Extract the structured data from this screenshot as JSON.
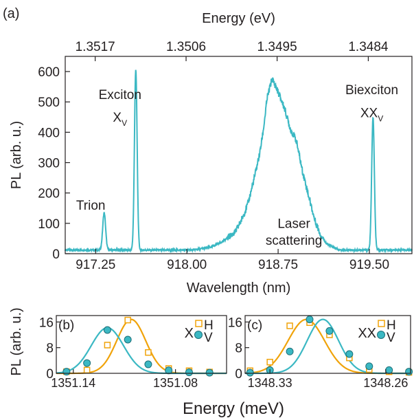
{
  "figure": {
    "xlabel_shared": "Energy (meV)"
  },
  "chart_data": [
    {
      "panel": "(a)",
      "type": "line",
      "xlabel": "Wavelength (nm)",
      "ylabel": "PL  (arb. u.)",
      "top_axis_label": "Energy (eV)",
      "xlim": [
        917.0,
        919.85
      ],
      "ylim": [
        0,
        650
      ],
      "xticks": [
        917.25,
        918.0,
        918.75,
        919.5
      ],
      "xtick_labels": [
        "917.25",
        "918.00",
        "918.75",
        "919.50"
      ],
      "yticks": [
        0,
        100,
        200,
        300,
        400,
        500,
        600
      ],
      "ytick_labels": [
        "0",
        "100",
        "200",
        "300",
        "400",
        "500",
        "600"
      ],
      "top_ticks": [
        1.3517,
        1.3506,
        1.3495,
        1.3484
      ],
      "top_tick_labels": [
        "1.3517",
        "1.3506",
        "1.3495",
        "1.3484"
      ],
      "color": "#3bb8c3",
      "baseline": 12,
      "peaks": [
        {
          "center": 917.32,
          "width": 0.012,
          "height": 123
        },
        {
          "center": 917.58,
          "width": 0.011,
          "height": 595
        },
        {
          "center": 919.53,
          "width": 0.011,
          "height": 437
        }
      ],
      "broad_band": {
        "x": [
          918.05,
          918.2,
          918.3,
          918.4,
          918.45,
          918.5,
          918.55,
          918.6,
          918.63,
          918.66,
          918.7,
          918.74,
          918.8,
          918.85,
          918.9,
          918.95,
          919.0,
          919.05,
          919.1,
          919.15,
          919.25
        ],
        "y": [
          0,
          10,
          30,
          60,
          100,
          150,
          230,
          320,
          400,
          500,
          565,
          530,
          470,
          400,
          360,
          260,
          180,
          100,
          50,
          20,
          0
        ]
      },
      "annotations": [
        {
          "text": "Trion",
          "x": 917.21,
          "y": 145
        },
        {
          "text": "Exciton",
          "x": 917.45,
          "y": 510
        },
        {
          "text": "X",
          "sub": "V",
          "x": 917.45,
          "y": 435
        },
        {
          "text": "Laser",
          "x": 918.88,
          "y": 85
        },
        {
          "text": "scattering",
          "x": 918.88,
          "y": 30
        },
        {
          "text": "Biexciton",
          "x": 919.52,
          "y": 525
        },
        {
          "text": "XX",
          "sub": "V",
          "x": 919.52,
          "y": 450
        }
      ]
    },
    {
      "panel": "(b)",
      "type": "scatter",
      "ylabel": "PL (arb. u.)",
      "xlim": [
        1351.15,
        1351.05
      ],
      "ylim": [
        0,
        18
      ],
      "xticks": [
        1351.14,
        1351.08
      ],
      "xtick_labels": [
        "1351.14",
        "1351.08"
      ],
      "yticks": [
        0,
        8,
        16
      ],
      "ytick_labels": [
        "0",
        "8",
        "16"
      ],
      "legend_title": "X",
      "series": [
        {
          "name": "H",
          "marker": "square",
          "color": "#f0a30a",
          "x": [
            1351.144,
            1351.132,
            1351.12,
            1351.108,
            1351.096,
            1351.084,
            1351.072,
            1351.06
          ],
          "y": [
            0.5,
            1.0,
            8.8,
            16.6,
            6.5,
            1.5,
            0.8,
            0.4
          ],
          "fit_center": 1351.106,
          "fit_sigma": 0.0085,
          "fit_amp": 16.8
        },
        {
          "name": "V",
          "marker": "circle",
          "color": "#3bb8c3",
          "x": [
            1351.144,
            1351.132,
            1351.12,
            1351.108,
            1351.096,
            1351.084,
            1351.072,
            1351.06
          ],
          "y": [
            0.5,
            3.2,
            13.5,
            10.5,
            2.8,
            0.9,
            0.3,
            0.2
          ],
          "fit_center": 1351.12,
          "fit_sigma": 0.0095,
          "fit_amp": 14.2
        }
      ]
    },
    {
      "panel": "(c)",
      "type": "scatter",
      "xlim": [
        1348.345,
        1348.245
      ],
      "ylim": [
        0,
        18
      ],
      "xticks": [
        1348.33,
        1348.26
      ],
      "xtick_labels": [
        "1348.33",
        "1348.26"
      ],
      "yticks": [
        0,
        8,
        16
      ],
      "ytick_labels": [
        "0",
        "8",
        "16"
      ],
      "legend_title": "XX",
      "series": [
        {
          "name": "H",
          "marker": "square",
          "color": "#f0a30a",
          "x": [
            1348.342,
            1348.33,
            1348.318,
            1348.306,
            1348.294,
            1348.282,
            1348.27,
            1348.258,
            1348.246
          ],
          "y": [
            0.8,
            3.5,
            14.8,
            15.8,
            12.0,
            4.8,
            1.2,
            0.5,
            0.3
          ],
          "fit_center": 1348.308,
          "fit_sigma": 0.011,
          "fit_amp": 16.8
        },
        {
          "name": "V",
          "marker": "circle",
          "color": "#3bb8c3",
          "x": [
            1348.342,
            1348.33,
            1348.318,
            1348.306,
            1348.294,
            1348.282,
            1348.27,
            1348.258,
            1348.246
          ],
          "y": [
            0.2,
            1.0,
            6.8,
            16.8,
            13.2,
            6.0,
            2.2,
            1.0,
            0.5
          ],
          "fit_center": 1348.298,
          "fit_sigma": 0.0095,
          "fit_amp": 16.8
        }
      ]
    }
  ]
}
